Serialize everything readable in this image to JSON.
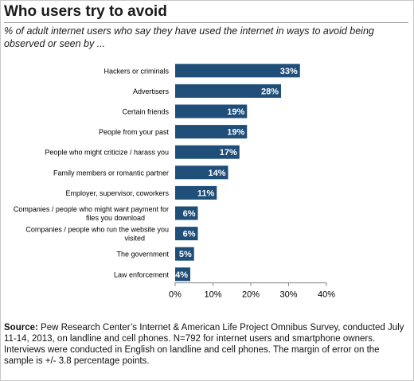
{
  "chart_data": {
    "type": "bar",
    "orientation": "horizontal",
    "title": "Who users try to avoid",
    "subtitle": "% of adult internet users who say they have used the internet in ways to avoid being observed or seen by ...",
    "categories": [
      "Hackers or criminals",
      "Advertisers",
      "Certain friends",
      "People from your past",
      "People who might criticize / harass you",
      "Family members or romantic partner",
      "Employer, supervisor, coworkers",
      "Companies / people who might want payment for files you download",
      "Companies / people who run the website you visited",
      "The government",
      "Law enforcement"
    ],
    "values": [
      33,
      28,
      19,
      19,
      17,
      14,
      11,
      6,
      6,
      5,
      4
    ],
    "data_labels": [
      "33%",
      "28%",
      "19%",
      "19%",
      "17%",
      "14%",
      "11%",
      "6%",
      "6%",
      "5%",
      "4%"
    ],
    "xlim": [
      0,
      40
    ],
    "ticks": [
      0,
      10,
      20,
      30,
      40
    ],
    "tick_labels": [
      "0%",
      "10%",
      "20%",
      "30%",
      "40%"
    ],
    "bar_color": "#1f4e79",
    "grid": false
  },
  "source": {
    "label": "Source:",
    "text": "Pew Research Center’s Internet & American Life Project Omnibus Survey, conducted July 11-14, 2013, on landline and cell phones. N=792 for internet users and smartphone owners. Interviews were conducted in English on landline and cell phones. The margin of error on the sample is +/- 3.8 percentage points."
  }
}
